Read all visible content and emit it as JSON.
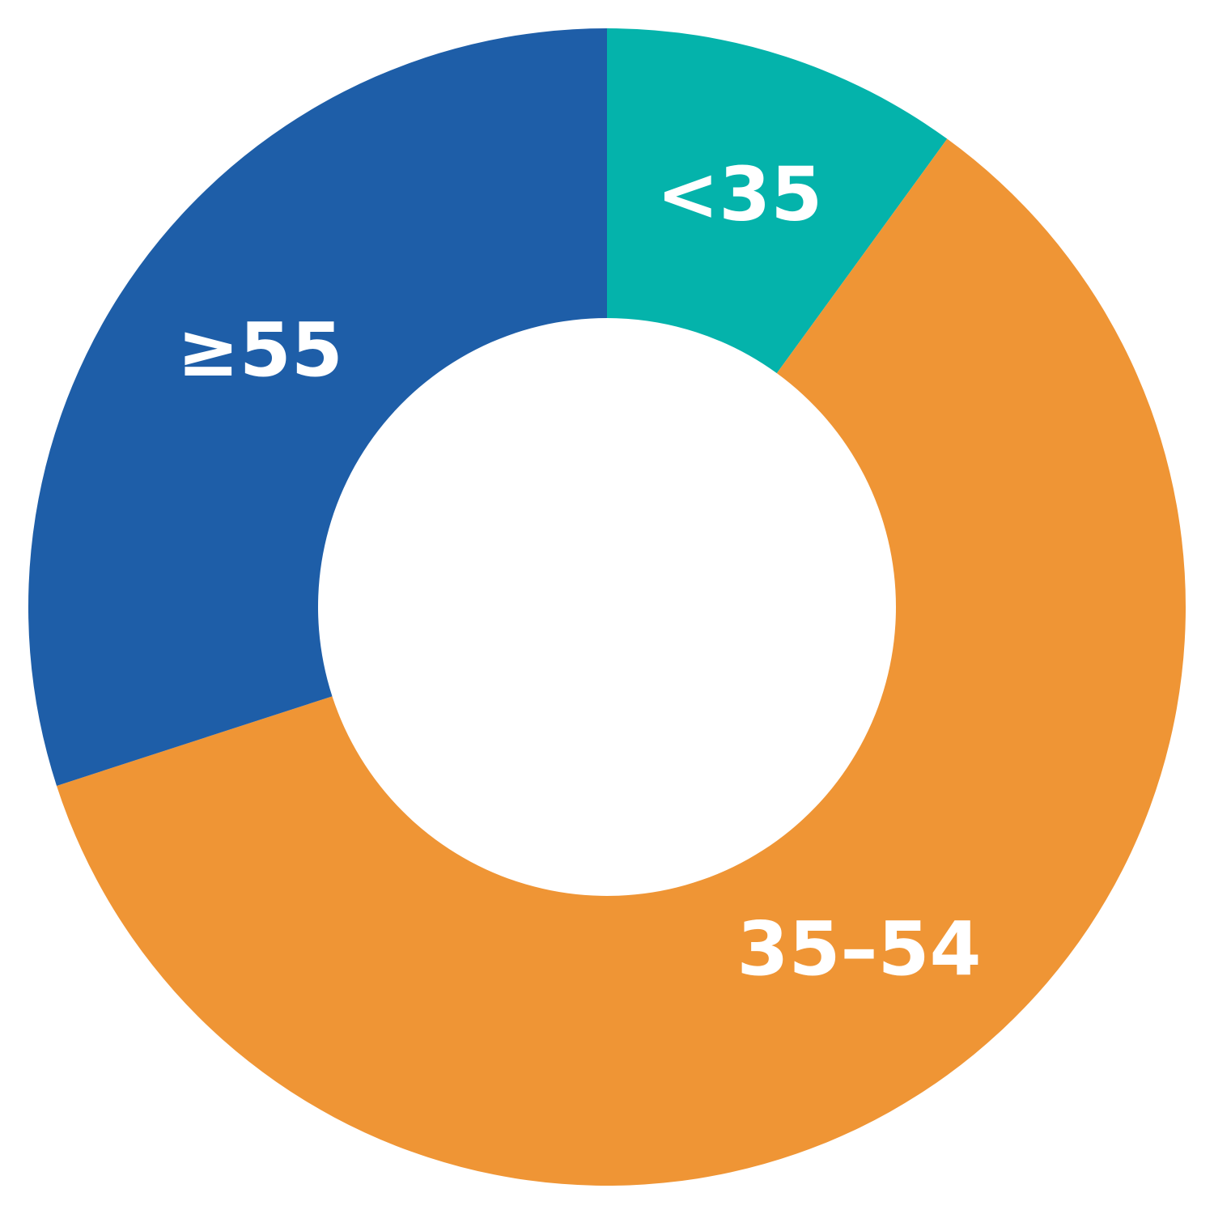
{
  "chart_data": {
    "type": "donut",
    "categories": [
      "<35",
      "35–54",
      "≥55"
    ],
    "values": [
      10,
      60,
      30
    ],
    "colors": [
      "#04b3ab",
      "#ef9535",
      "#1e5ea8"
    ]
  }
}
